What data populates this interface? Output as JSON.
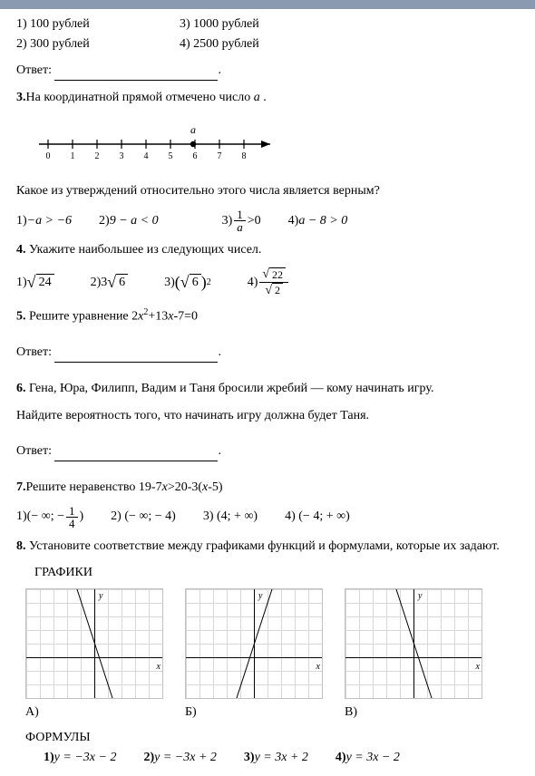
{
  "q2": {
    "opt1": "1) 100 рублей",
    "opt2": "2) 300 рублей",
    "opt3": "3) 1000 рублей",
    "opt4": "4) 2500 рублей"
  },
  "answer_label": "Ответ:",
  "q3": {
    "title_num": "3.",
    "title_text": "На координатной прямой отмечено число ",
    "var": "a",
    "period": " .",
    "ticks": [
      "0",
      "1",
      "2",
      "3",
      "4",
      "5",
      "6",
      "7",
      "8"
    ],
    "a_label": "a",
    "question": "Какое из утверждений относительно этого числа является верным?",
    "opt1_prefix": "1) ",
    "opt1_expr": "−a > −6",
    "opt2_prefix": "2) ",
    "opt2_expr": "9 − a < 0",
    "opt3_prefix": "3) ",
    "opt3_num": "1",
    "opt3_den": "a",
    "opt3_tail": " >0",
    "opt4_prefix": "4) ",
    "opt4_expr": "a − 8 > 0"
  },
  "q4": {
    "title_num": "4.",
    "title_text": " Укажите наибольшее из следующих чисел.",
    "opt1_prefix": "1) ",
    "opt1_body": "24",
    "opt2_prefix": "2)",
    "opt2_coef": "3",
    "opt2_body": "6",
    "opt3_prefix": "3) ",
    "opt3_lp": "(",
    "opt3_body": "6",
    "opt3_rp": ")",
    "opt3_exp": "2",
    "opt4_prefix": "4) ",
    "opt4_num": "22",
    "opt4_den": "2"
  },
  "q5": {
    "title_num": "5.",
    "title_text": " Решите уравнение   ",
    "expr_a": "2",
    "expr_x2": "x",
    "expr_exp": "2",
    "expr_plus": "+13",
    "expr_x": "x",
    "expr_tail": "-7=0"
  },
  "q6": {
    "title_num": "6.",
    "text1": " Гена, Юра, Филипп, Вадим и Таня бросили жребий — кому начинать игру.",
    "text2": "Найдите вероятность того, что начинать игру должна будет Таня."
  },
  "q7": {
    "title_num": "7.",
    "title_text": "Решите неравенство   19-7",
    "x1": "x",
    "mid": ">20-3(",
    "x2": "x",
    "tail": "-5)",
    "opt1_prefix": "1)   ",
    "opt1_open": "(− ∞;  −",
    "opt1_num": "1",
    "opt1_den": "4",
    "opt1_close": " )",
    "opt2": "2)    (− ∞;  − 4)",
    "opt3": "3)    (4;  + ∞)",
    "opt4": "4)    (− 4;  + ∞)"
  },
  "q8": {
    "title_num": "8.",
    "title_text": " Установите соответствие между графиками функций и формулами, которые их задают.",
    "graphs_label": "ГРАФИКИ",
    "labelA": "А)",
    "labelB": "Б)",
    "labelV": "В)",
    "lineA_rotate": -18,
    "lineB_rotate": 18,
    "lineV_rotate": -18,
    "formulas_label": "ФОРМУЛЫ",
    "f1_prefix": "1)   ",
    "f1": "y = −3x − 2",
    "f2_prefix": "2)   ",
    "f2": "y = −3x + 2",
    "f3_prefix": "3)   ",
    "f3": "y = 3x + 2",
    "f4_prefix": "4)   ",
    "f4": "y = 3x − 2"
  },
  "style": {
    "font": "Times New Roman",
    "font_size_pt": 11,
    "bg": "#ffffff",
    "text": "#000000",
    "grid": "#d7d7d7"
  }
}
